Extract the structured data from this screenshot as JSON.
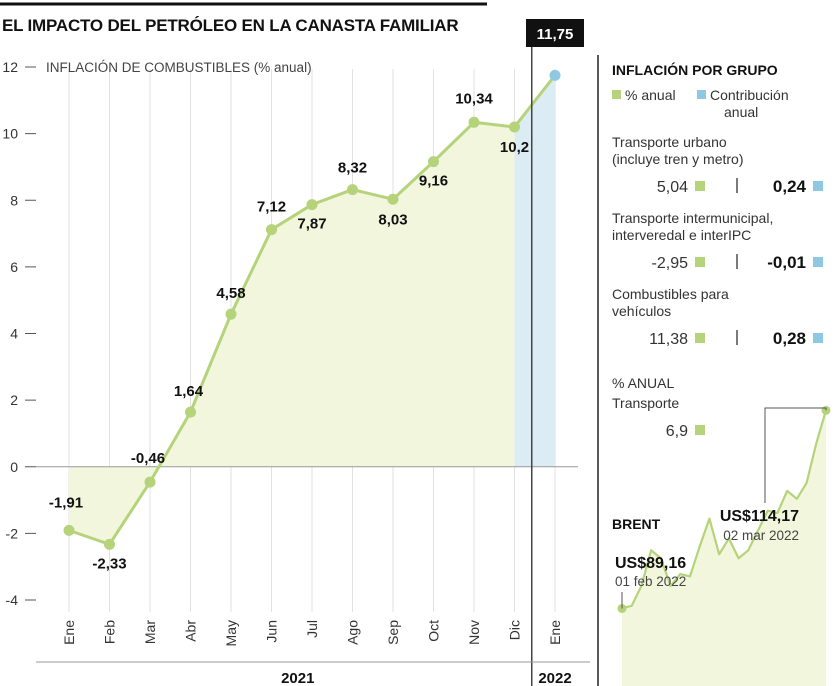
{
  "title": "EL IMPACTO DEL PETRÓLEO EN LA CANASTA FAMILIAR",
  "chart_data": {
    "type": "area",
    "subtitle": "INFLACIÓN DE COMBUSTIBLES (% anual)",
    "categories": [
      "Ene",
      "Feb",
      "Mar",
      "Abr",
      "May",
      "Jun",
      "Jul",
      "Ago",
      "Sep",
      "Oct",
      "Nov",
      "Dic",
      "Ene"
    ],
    "values": [
      -1.91,
      -2.33,
      -0.46,
      1.64,
      4.58,
      7.12,
      7.87,
      8.32,
      8.03,
      9.16,
      10.34,
      10.2,
      11.75
    ],
    "value_labels": [
      "-1,91",
      "-2,33",
      "-0,46",
      "1,64",
      "4,58",
      "7,12",
      "7,87",
      "8,32",
      "8,03",
      "9,16",
      "10,34",
      "10,2",
      "11,75"
    ],
    "years": [
      {
        "label": "2021"
      },
      {
        "label": "2022"
      }
    ],
    "ylim": [
      -4,
      12
    ],
    "yticks": [
      -4,
      -2,
      0,
      2,
      4,
      6,
      8,
      10,
      12
    ],
    "ytick_labels": [
      "-4",
      "-2",
      "0",
      "2",
      "4",
      "6",
      "8",
      "10",
      "12"
    ],
    "grid": true,
    "colors": {
      "line": "#b5d37a",
      "fill": "#f2f6dc",
      "highlight_fill": "#dcecf4",
      "highlight_point": "#8fc8e3",
      "badge": "#111111"
    }
  },
  "side": {
    "title": "INFLACIÓN POR GRUPO",
    "legend_anual": "% anual",
    "legend_contrib": [
      "Contribución",
      "anual"
    ],
    "groups": [
      {
        "name": [
          "Transporte urbano",
          "(incluye tren y metro)"
        ],
        "anual": "5,04",
        "contrib": "0,24"
      },
      {
        "name": [
          "Transporte intermunicipal,",
          "interveredal e interIPC"
        ],
        "anual": "-2,95",
        "contrib": "-0,01"
      },
      {
        "name": [
          "Combustibles para",
          "vehículos"
        ],
        "anual": "11,38",
        "contrib": "0,28"
      }
    ],
    "transport_label": [
      "% ANUAL",
      "Transporte"
    ],
    "transport_value": "6,9"
  },
  "brent": {
    "label": "BRENT",
    "start_value": "US$89,16",
    "start_date": "01 feb 2022",
    "end_value": "US$114,17",
    "end_date": "02 mar 2022",
    "series": [
      89.16,
      89.5,
      92,
      96.5,
      95.5,
      92,
      93.5,
      93.2,
      97,
      100.5,
      96,
      98,
      95.5,
      96.5,
      99,
      101.5,
      101.2,
      104,
      103,
      105,
      110,
      114.17
    ]
  }
}
